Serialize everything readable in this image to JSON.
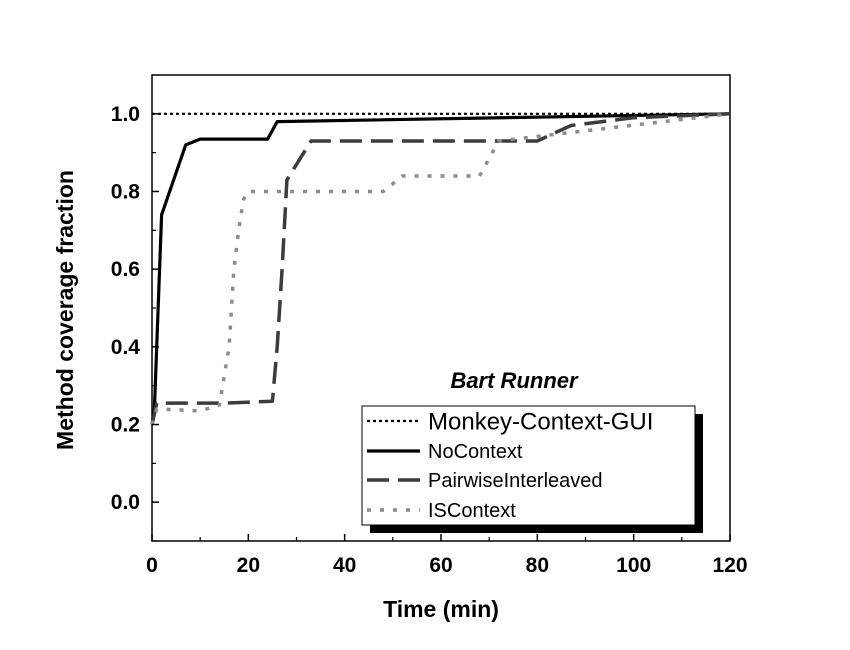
{
  "chart_data": {
    "type": "line",
    "title": "",
    "annotation": "Bart Runner",
    "xlabel": "Time (min)",
    "ylabel": "Method coverage fraction",
    "xlim": [
      0,
      120
    ],
    "ylim": [
      -0.1,
      1.1
    ],
    "xticks": [
      0,
      20,
      40,
      60,
      80,
      100,
      120
    ],
    "yticks": [
      0.0,
      0.2,
      0.4,
      0.6,
      0.8,
      1.0
    ],
    "xtick_labels": [
      "0",
      "20",
      "40",
      "60",
      "80",
      "100",
      "120"
    ],
    "ytick_labels": [
      "0.0",
      "0.2",
      "0.4",
      "0.6",
      "0.8",
      "1.0"
    ],
    "grid": false,
    "legend_position": "bottom-right",
    "series": [
      {
        "name": "Monkey-Context-GUI",
        "style": "dotted",
        "color": "#000000",
        "x": [
          0,
          120
        ],
        "y": [
          1.0,
          1.0
        ]
      },
      {
        "name": "NoContext",
        "style": "solid",
        "color": "#000000",
        "x": [
          0,
          0.5,
          2,
          7,
          10,
          24,
          26,
          120
        ],
        "y": [
          0.2,
          0.24,
          0.74,
          0.92,
          0.935,
          0.935,
          0.98,
          1.0
        ]
      },
      {
        "name": "PairwiseInterleaved",
        "style": "dashed",
        "color": "#3c3c3c",
        "x": [
          0,
          1,
          15,
          25,
          26,
          27,
          28,
          33,
          80,
          87,
          100,
          120
        ],
        "y": [
          0.2,
          0.255,
          0.255,
          0.26,
          0.4,
          0.6,
          0.83,
          0.93,
          0.93,
          0.97,
          0.99,
          1.0
        ]
      },
      {
        "name": "ISContext",
        "style": "dotted-gray",
        "color": "#8c8c8c",
        "x": [
          0,
          1,
          10,
          14,
          16,
          17,
          18,
          19,
          20,
          48,
          52,
          68,
          72,
          120
        ],
        "y": [
          0.2,
          0.24,
          0.235,
          0.25,
          0.4,
          0.6,
          0.7,
          0.78,
          0.8,
          0.8,
          0.84,
          0.84,
          0.93,
          1.0
        ]
      }
    ]
  }
}
